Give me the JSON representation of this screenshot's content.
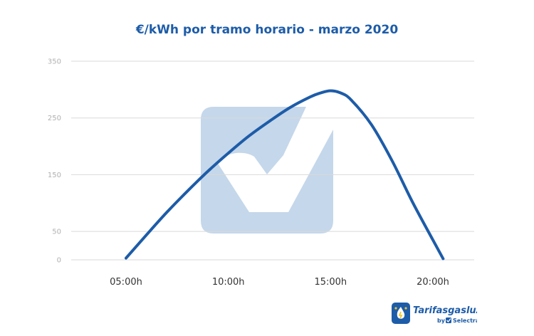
{
  "chart_data": {
    "type": "line",
    "title": "€/kWh por tramo horario - marzo 2020",
    "xlabel": "",
    "ylabel": "",
    "x_ticks": [
      "05:00h",
      "10:00h",
      "15:00h",
      "20:00h"
    ],
    "x_range": [
      5,
      20
    ],
    "y_ticks": [
      "0",
      "50",
      "150",
      "250",
      "350"
    ],
    "ylim": [
      0,
      350
    ],
    "grid": true,
    "series": [
      {
        "x": [
          5.0,
          6.0,
          7.0,
          8.0,
          9.0,
          10.0,
          11.0,
          12.0,
          13.0,
          14.0,
          14.5,
          15.0,
          15.5,
          16.0,
          17.0,
          18.0,
          19.0,
          20.0,
          20.5
        ],
        "values": [
          3,
          44,
          84,
          121,
          156,
          188,
          218,
          244,
          268,
          287,
          294,
          298,
          294,
          282,
          238,
          175,
          102,
          35,
          2
        ],
        "color": "#1d5ca8"
      }
    ]
  },
  "branding": {
    "logo_text": "Tarifasgasluz",
    "logo_by": "by",
    "logo_company": "Selectra",
    "watermark_icon": "checkmark-watermark-icon"
  }
}
